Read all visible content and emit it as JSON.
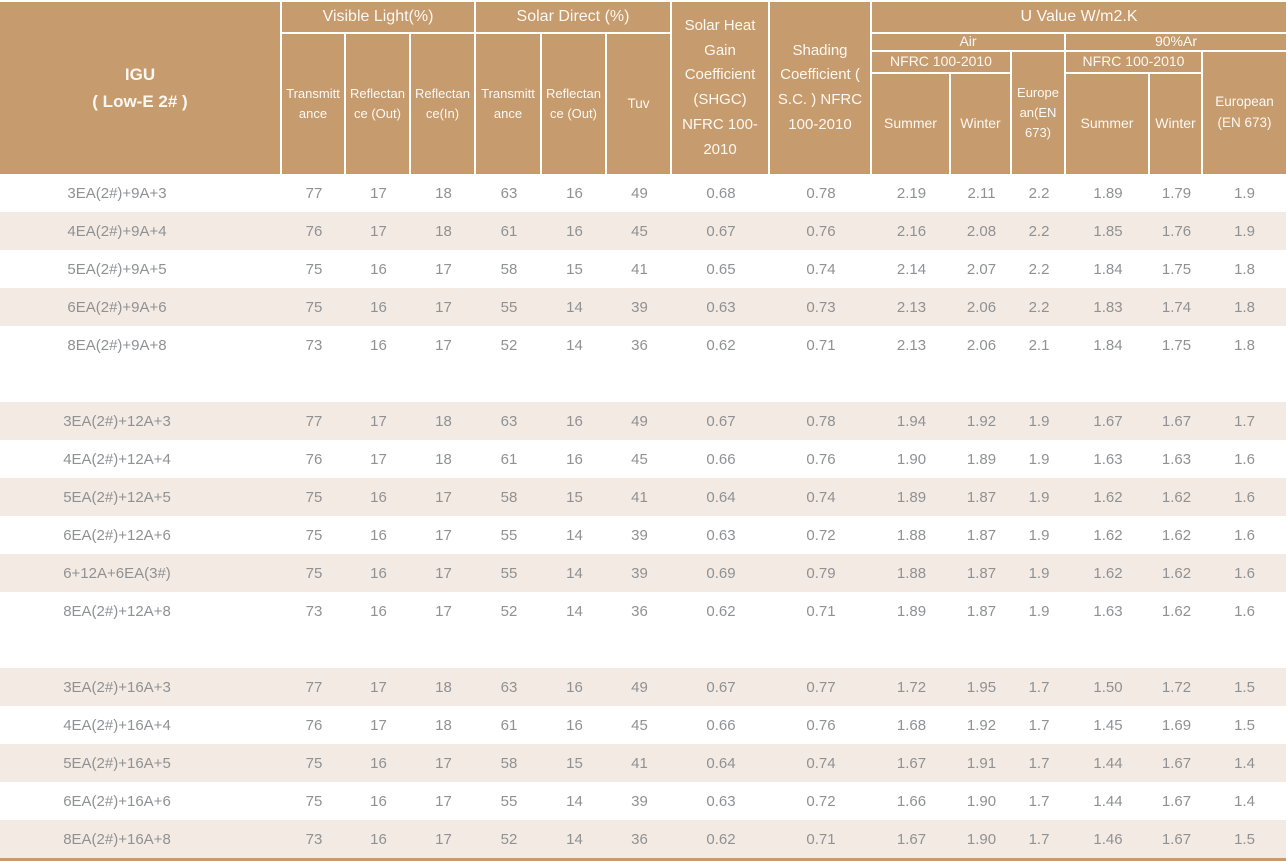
{
  "colors": {
    "header_bg": "#c69b6d",
    "header_text": "#fcf8f3",
    "row_stripe": "#f3eae3",
    "data_text": "#8f9193",
    "bottom_border": "#c69b6d"
  },
  "header": {
    "igu_line1": "IGU",
    "igu_line2": "( Low-E 2# )",
    "visible_light": "Visible Light(%)",
    "solar_direct": "Solar  Direct (%)",
    "shgc": "Solar Heat Gain Coefficient (SHGC) NFRC 100-2010",
    "shading": "Shading Coefficient ( S.C. ) NFRC 100-2010",
    "u_value": "U Value W/m2.K",
    "air": "Air",
    "argon": "90%Ar",
    "nfrc": "NFRC 100-2010",
    "european_air": "European(EN 673)",
    "european_ar": "European (EN 673)",
    "transmittance": "Transmittance",
    "reflectance_out": "Reflectance (Out)",
    "reflectance_in": "Reflectance(In)",
    "tuv": "Tuv",
    "summer": "Summer",
    "winter": "Winter"
  },
  "table": {
    "column_names": [
      "vl-transmittance",
      "vl-reflectance-out",
      "vl-reflectance-in",
      "sd-transmittance",
      "sd-reflectance-out",
      "tuv",
      "shgc",
      "shading-coefficient",
      "air-summer",
      "air-winter",
      "air-european",
      "ar-summer",
      "ar-winter",
      "ar-european"
    ],
    "groups": [
      {
        "rows": [
          {
            "igu": "3EA(2#)+9A+3",
            "values": [
              "77",
              "17",
              "18",
              "63",
              "16",
              "49",
              "0.68",
              "0.78",
              "2.19",
              "2.11",
              "2.2",
              "1.89",
              "1.79",
              "1.9"
            ]
          },
          {
            "igu": "4EA(2#)+9A+4",
            "values": [
              "76",
              "17",
              "18",
              "61",
              "16",
              "45",
              "0.67",
              "0.76",
              "2.16",
              "2.08",
              "2.2",
              "1.85",
              "1.76",
              "1.9"
            ]
          },
          {
            "igu": "5EA(2#)+9A+5",
            "values": [
              "75",
              "16",
              "17",
              "58",
              "15",
              "41",
              "0.65",
              "0.74",
              "2.14",
              "2.07",
              "2.2",
              "1.84",
              "1.75",
              "1.8"
            ]
          },
          {
            "igu": "6EA(2#)+9A+6",
            "values": [
              "75",
              "16",
              "17",
              "55",
              "14",
              "39",
              "0.63",
              "0.73",
              "2.13",
              "2.06",
              "2.2",
              "1.83",
              "1.74",
              "1.8"
            ]
          },
          {
            "igu": "8EA(2#)+9A+8",
            "values": [
              "73",
              "16",
              "17",
              "52",
              "14",
              "36",
              "0.62",
              "0.71",
              "2.13",
              "2.06",
              "2.1",
              "1.84",
              "1.75",
              "1.8"
            ]
          }
        ]
      },
      {
        "rows": [
          {
            "igu": "3EA(2#)+12A+3",
            "values": [
              "77",
              "17",
              "18",
              "63",
              "16",
              "49",
              "0.67",
              "0.78",
              "1.94",
              "1.92",
              "1.9",
              "1.67",
              "1.67",
              "1.7"
            ]
          },
          {
            "igu": "4EA(2#)+12A+4",
            "values": [
              "76",
              "17",
              "18",
              "61",
              "16",
              "45",
              "0.66",
              "0.76",
              "1.90",
              "1.89",
              "1.9",
              "1.63",
              "1.63",
              "1.6"
            ]
          },
          {
            "igu": "5EA(2#)+12A+5",
            "values": [
              "75",
              "16",
              "17",
              "58",
              "15",
              "41",
              "0.64",
              "0.74",
              "1.89",
              "1.87",
              "1.9",
              "1.62",
              "1.62",
              "1.6"
            ]
          },
          {
            "igu": "6EA(2#)+12A+6",
            "values": [
              "75",
              "16",
              "17",
              "55",
              "14",
              "39",
              "0.63",
              "0.72",
              "1.88",
              "1.87",
              "1.9",
              "1.62",
              "1.62",
              "1.6"
            ]
          },
          {
            "igu": "6+12A+6EA(3#)",
            "values": [
              "75",
              "16",
              "17",
              "55",
              "14",
              "39",
              "0.69",
              "0.79",
              "1.88",
              "1.87",
              "1.9",
              "1.62",
              "1.62",
              "1.6"
            ]
          },
          {
            "igu": "8EA(2#)+12A+8",
            "values": [
              "73",
              "16",
              "17",
              "52",
              "14",
              "36",
              "0.62",
              "0.71",
              "1.89",
              "1.87",
              "1.9",
              "1.63",
              "1.62",
              "1.6"
            ]
          }
        ]
      },
      {
        "rows": [
          {
            "igu": "3EA(2#)+16A+3",
            "values": [
              "77",
              "17",
              "18",
              "63",
              "16",
              "49",
              "0.67",
              "0.77",
              "1.72",
              "1.95",
              "1.7",
              "1.50",
              "1.72",
              "1.5"
            ]
          },
          {
            "igu": "4EA(2#)+16A+4",
            "values": [
              "76",
              "17",
              "18",
              "61",
              "16",
              "45",
              "0.66",
              "0.76",
              "1.68",
              "1.92",
              "1.7",
              "1.45",
              "1.69",
              "1.5"
            ]
          },
          {
            "igu": "5EA(2#)+16A+5",
            "values": [
              "75",
              "16",
              "17",
              "58",
              "15",
              "41",
              "0.64",
              "0.74",
              "1.67",
              "1.91",
              "1.7",
              "1.44",
              "1.67",
              "1.4"
            ]
          },
          {
            "igu": "6EA(2#)+16A+6",
            "values": [
              "75",
              "16",
              "17",
              "55",
              "14",
              "39",
              "0.63",
              "0.72",
              "1.66",
              "1.90",
              "1.7",
              "1.44",
              "1.67",
              "1.4"
            ]
          },
          {
            "igu": "8EA(2#)+16A+8",
            "values": [
              "73",
              "16",
              "17",
              "52",
              "14",
              "36",
              "0.62",
              "0.71",
              "1.67",
              "1.90",
              "1.7",
              "1.46",
              "1.67",
              "1.5"
            ]
          }
        ]
      }
    ]
  }
}
